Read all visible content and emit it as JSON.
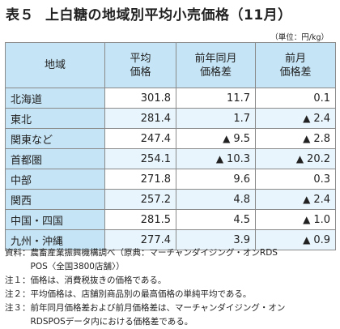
{
  "title": {
    "label": "表５",
    "text": "上白糖の地域別平均小売価格（11月）"
  },
  "unit": "（単位：円/kg）",
  "table": {
    "headers": [
      [
        "地域"
      ],
      [
        "平均",
        "価格"
      ],
      [
        "前年同月",
        "価格差"
      ],
      [
        "前月",
        "価格差"
      ]
    ],
    "rows": [
      {
        "region": "北海道",
        "price": "301.8",
        "yoy": "11.7",
        "yoy_neg": false,
        "mom": "0.1",
        "mom_neg": false
      },
      {
        "region": "東北",
        "price": "281.4",
        "yoy": "1.7",
        "yoy_neg": false,
        "mom": "2.4",
        "mom_neg": true
      },
      {
        "region": "関東など",
        "price": "247.4",
        "yoy": "9.5",
        "yoy_neg": true,
        "mom": "2.8",
        "mom_neg": true
      },
      {
        "region": "首都圏",
        "price": "254.1",
        "yoy": "10.3",
        "yoy_neg": true,
        "mom": "20.2",
        "mom_neg": true
      },
      {
        "region": "中部",
        "price": "271.8",
        "yoy": "9.6",
        "yoy_neg": false,
        "mom": "0.3",
        "mom_neg": false
      },
      {
        "region": "関西",
        "price": "257.2",
        "yoy": "4.8",
        "yoy_neg": false,
        "mom": "2.4",
        "mom_neg": true
      },
      {
        "region": "中国・四国",
        "price": "281.5",
        "yoy": "4.5",
        "yoy_neg": false,
        "mom": "1.0",
        "mom_neg": true
      },
      {
        "region": "九州・沖縄",
        "price": "277.4",
        "yoy": "3.9",
        "yoy_neg": false,
        "mom": "0.9",
        "mom_neg": true
      }
    ],
    "negative_marker": "▲"
  },
  "notes": [
    {
      "key": "資料：",
      "lines": [
        "農畜産業振興機構調べ（原典：マーチャンダイジング・オンRDS",
        "POS〈全国3800店舗〉）"
      ]
    },
    {
      "key": "注１：",
      "lines": [
        "価格は、消費税抜きの価格である。"
      ]
    },
    {
      "key": "注２：",
      "lines": [
        "平均価格は、店舗別商品別の最高価格の単純平均である。"
      ]
    },
    {
      "key": "注３：",
      "lines": [
        "前年同月価格差および前月価格差は、マーチャンダイジング・オン",
        "RDSPOSデータ内における価格差である。"
      ]
    }
  ]
}
